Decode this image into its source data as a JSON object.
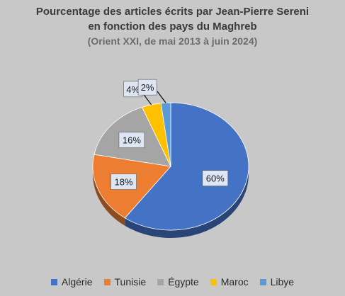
{
  "chart_data": {
    "type": "pie",
    "title_lines": [
      "Pourcentage des articles écrits par Jean-Pierre Sereni",
      "en fonction des pays du Maghreb"
    ],
    "subtitle": "(Orient XXI, de mai 2013 à juin 2024)",
    "legend_position": "bottom",
    "slices": [
      {
        "name": "Algérie",
        "value": 60,
        "label": "60%",
        "color": "#4472c4"
      },
      {
        "name": "Tunisie",
        "value": 18,
        "label": "18%",
        "color": "#ed7d31"
      },
      {
        "name": "Égypte",
        "value": 16,
        "label": "16%",
        "color": "#a5a5a5"
      },
      {
        "name": "Maroc",
        "value": 4,
        "label": "4%",
        "color": "#ffc000"
      },
      {
        "name": "Libye",
        "value": 2,
        "label": "2%",
        "color": "#5b9bd5"
      }
    ]
  }
}
